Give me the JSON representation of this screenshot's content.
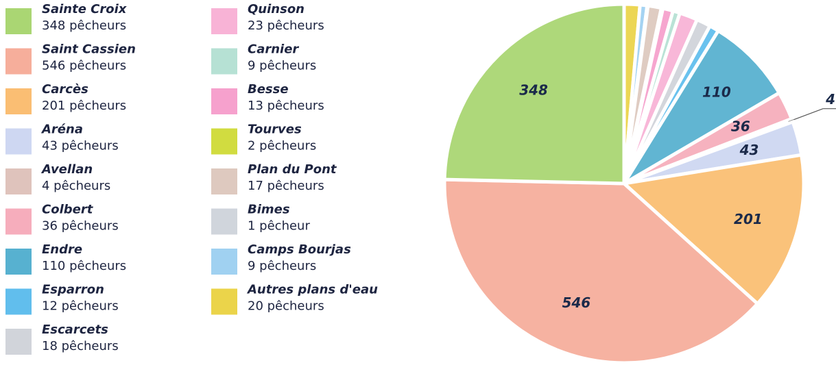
{
  "chart_data": {
    "type": "pie",
    "categories": [
      "Sainte Croix",
      "Saint Cassien",
      "Carcès",
      "Aréna",
      "Avellan",
      "Colbert",
      "Endre",
      "Esparron",
      "Escarcets",
      "Quinson",
      "Carnier",
      "Besse",
      "Tourves",
      "Plan du Pont",
      "Bimes",
      "Camps Bourjas",
      "Autres plans d'eau"
    ],
    "values": [
      348,
      546,
      201,
      43,
      4,
      36,
      110,
      12,
      18,
      23,
      9,
      13,
      2,
      17,
      1,
      9,
      20
    ],
    "value_labels": [
      "348 pêcheurs",
      "546 pêcheurs",
      "201 pêcheurs",
      "43 pêcheurs",
      "4 pêcheurs",
      "36 pêcheurs",
      "110 pêcheurs",
      "12 pêcheurs",
      "18 pêcheurs",
      "23 pêcheurs",
      "9 pêcheurs",
      "13 pêcheurs",
      "2 pêcheurs",
      "17 pêcheurs",
      "1 pêcheur",
      "9 pêcheurs",
      "20 pêcheurs"
    ],
    "colors": [
      "#9bcf5a",
      "#f4a08a",
      "#f9b35a",
      "#c5d0f0",
      "#d9b8b0",
      "#f59fb0",
      "#3aa3c8",
      "#45b3ea",
      "#c9cdd4",
      "#f7a6cf",
      "#a9dccc",
      "#f591c4",
      "#c9d61f",
      "#d8c0b4",
      "#c8ced6",
      "#8fc9ef",
      "#e8cc2a"
    ]
  }
}
